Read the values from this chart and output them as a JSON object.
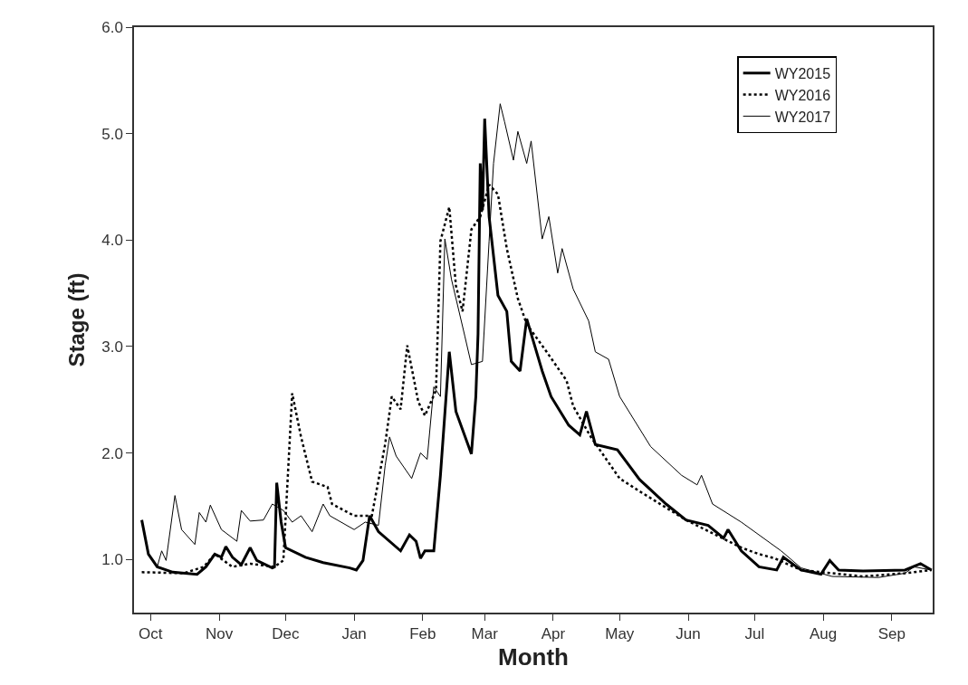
{
  "chart_data": {
    "type": "line",
    "xlabel": "Month",
    "ylabel": "Stage (ft)",
    "categories": [
      null,
      null,
      null,
      null,
      null,
      null,
      null,
      "Oct",
      null,
      null,
      null,
      null,
      null,
      null,
      null,
      null,
      null,
      null,
      null,
      null,
      null,
      null,
      null,
      null,
      null,
      null,
      null,
      null,
      null,
      null,
      null,
      null,
      null,
      null,
      null,
      null,
      null,
      null,
      "Nov",
      null,
      null,
      null,
      null,
      null,
      null,
      null,
      null,
      null,
      null,
      null,
      null,
      null,
      null,
      null,
      null,
      null,
      null,
      null,
      null,
      null,
      null,
      null,
      null,
      null,
      null,
      null,
      null,
      null,
      "Dec",
      null,
      null,
      null,
      null,
      null,
      null,
      null,
      null,
      null,
      null,
      null,
      null,
      null,
      null,
      null,
      null,
      null,
      null,
      null,
      null,
      null,
      null,
      null,
      null,
      null,
      null,
      null,
      null,
      null,
      null,
      "Jan",
      null,
      null,
      null,
      null,
      null,
      null,
      null,
      null,
      null,
      null,
      null,
      null,
      null,
      null,
      null,
      null,
      null,
      null,
      null,
      null,
      null,
      null,
      null,
      null,
      null,
      null,
      null,
      null,
      null,
      null,
      "Feb",
      null,
      null,
      null,
      null,
      null,
      null,
      null,
      null,
      null,
      null,
      null,
      null,
      null,
      null,
      null,
      null,
      null,
      null,
      null,
      null,
      null,
      null,
      null,
      null,
      null,
      null,
      null,
      "Mar",
      null,
      null,
      null,
      null,
      null,
      null,
      null,
      null,
      null,
      null,
      null,
      null,
      null,
      null,
      null,
      null,
      null,
      null,
      null,
      null,
      null,
      null,
      null,
      null,
      null,
      null,
      null,
      null,
      null,
      null,
      "Apr",
      null,
      null,
      null,
      null,
      null,
      null,
      null,
      null,
      null,
      null,
      null,
      null,
      null,
      null,
      null,
      null,
      null,
      null,
      null,
      null,
      null,
      null,
      null,
      null,
      null,
      null,
      null,
      null,
      null,
      "May",
      null,
      null,
      null,
      null,
      null,
      null,
      null,
      null,
      null,
      null,
      null,
      null,
      null,
      null,
      null,
      null,
      null,
      null,
      null,
      null,
      null,
      null,
      null,
      null,
      null,
      null,
      null,
      null,
      null,
      null,
      "Jun",
      null,
      null,
      null,
      null,
      null,
      null,
      null,
      null,
      null,
      null,
      null,
      null,
      null,
      null,
      null,
      null,
      null,
      null,
      null,
      null,
      null,
      null,
      null,
      null,
      null,
      null,
      null,
      null,
      null,
      "Jul",
      null,
      null,
      null,
      null,
      null,
      null,
      null,
      null,
      null,
      null,
      null,
      null,
      null,
      null,
      null,
      null,
      null,
      null,
      null,
      null,
      null,
      null,
      null,
      null,
      null,
      null,
      null,
      null,
      null,
      null,
      "Aug",
      null,
      null,
      null,
      null,
      null,
      null,
      null,
      null,
      null,
      null,
      null,
      null,
      null,
      null,
      null,
      null,
      null,
      null,
      null,
      null,
      null,
      null,
      null,
      null,
      null,
      null,
      null,
      null,
      null,
      null,
      "Sep",
      null,
      null,
      null,
      null,
      null,
      null,
      null,
      null,
      null,
      null,
      null,
      null,
      null,
      null,
      null,
      null,
      null,
      null
    ],
    "ylim": [
      0.5,
      6.0
    ],
    "yticks": [
      {
        "value": 1,
        "label": "1.0"
      },
      {
        "value": 2,
        "label": "2.0"
      },
      {
        "value": 3,
        "label": "3.0"
      },
      {
        "value": 4,
        "label": "4.0"
      },
      {
        "value": 5,
        "label": "5.0"
      },
      {
        "value": 6,
        "label": "6.0"
      }
    ],
    "legend": "top right",
    "marker": "none",
    "series": [
      {
        "name": "WY2015",
        "color": "#000000",
        "line_style": "solid",
        "values": [
          null,
          null,
          null,
          1.37,
          null,
          null,
          1.05,
          null,
          null,
          null,
          0.93,
          null,
          null,
          null,
          null,
          null,
          null,
          0.88,
          null,
          null,
          null,
          null,
          null,
          null,
          null,
          null,
          null,
          null,
          0.86,
          null,
          null,
          null,
          0.93,
          null,
          null,
          null,
          1.05,
          null,
          null,
          1.02,
          null,
          1.12,
          null,
          null,
          1.02,
          null,
          null,
          null,
          0.95,
          null,
          null,
          null,
          1.11,
          null,
          null,
          0.99,
          null,
          null,
          null,
          null,
          null,
          null,
          0.92,
          0.93,
          1.72,
          null,
          1.35,
          null,
          1.11,
          null,
          null,
          null,
          null,
          null,
          null,
          null,
          null,
          1.02,
          null,
          null,
          null,
          null,
          null,
          null,
          null,
          0.97,
          null,
          null,
          null,
          null,
          null,
          null,
          null,
          null,
          null,
          null,
          null,
          0.92,
          null,
          null,
          0.9,
          null,
          null,
          0.99,
          null,
          null,
          1.41,
          null,
          null,
          null,
          1.26,
          null,
          null,
          null,
          null,
          null,
          null,
          null,
          null,
          null,
          1.08,
          null,
          null,
          null,
          1.23,
          null,
          null,
          1.17,
          null,
          1.01,
          null,
          1.08,
          null,
          null,
          null,
          1.08,
          null,
          null,
          1.79,
          null,
          null,
          null,
          2.95,
          null,
          null,
          2.39,
          null,
          null,
          null,
          null,
          null,
          null,
          1.99,
          null,
          2.53,
          3.12,
          4.72,
          4.28,
          5.14,
          null,
          4.22,
          null,
          null,
          null,
          3.48,
          null,
          null,
          null,
          3.33,
          null,
          2.86,
          null,
          null,
          null,
          2.77,
          null,
          null,
          3.26,
          null,
          null,
          null,
          null,
          null,
          null,
          2.77,
          null,
          null,
          null,
          2.53,
          null,
          null,
          null,
          null,
          null,
          null,
          null,
          2.26,
          null,
          null,
          null,
          null,
          2.17,
          null,
          null,
          2.39,
          null,
          null,
          null,
          2.08,
          null,
          null,
          null,
          null,
          null,
          null,
          null,
          null,
          null,
          2.03,
          null,
          null,
          null,
          null,
          null,
          null,
          null,
          null,
          null,
          1.75,
          null,
          null,
          null,
          null,
          null,
          null,
          null,
          null,
          null,
          null,
          null,
          1.52,
          null,
          null,
          null,
          null,
          null,
          null,
          null,
          null,
          1.37,
          null,
          null,
          null,
          null,
          null,
          null,
          null,
          null,
          null,
          1.32,
          null,
          null,
          null,
          null,
          null,
          null,
          1.2,
          null,
          1.28,
          null,
          null,
          null,
          null,
          null,
          1.08,
          null,
          null,
          null,
          null,
          null,
          null,
          null,
          0.93,
          null,
          null,
          null,
          null,
          null,
          null,
          null,
          0.9,
          null,
          null,
          1.02,
          null,
          null,
          null,
          null,
          null,
          null,
          null,
          0.9,
          null,
          null,
          null,
          null,
          null,
          null,
          null,
          null,
          0.86,
          null,
          null,
          null,
          0.99,
          null,
          null,
          null,
          0.9,
          null,
          null,
          null,
          null,
          null,
          null,
          null,
          null,
          null,
          null,
          0.89,
          null,
          null,
          null,
          null,
          null,
          null,
          null,
          null,
          null,
          null,
          null,
          null,
          null,
          null,
          null,
          null,
          null,
          null,
          0.9,
          null,
          null,
          null,
          null,
          null,
          null,
          0.96,
          null,
          null,
          null,
          null,
          0.9
        ]
      },
      {
        "name": "WY2016",
        "color": "#000000",
        "line_style": "dotted",
        "values": [
          null,
          null,
          null,
          0.88,
          null,
          null,
          null,
          null,
          null,
          null,
          null,
          null,
          null,
          null,
          null,
          null,
          null,
          null,
          null,
          null,
          null,
          null,
          0.87,
          null,
          null,
          null,
          null,
          null,
          null,
          null,
          null,
          0.93,
          null,
          null,
          null,
          null,
          1.05,
          null,
          null,
          null,
          null,
          null,
          null,
          null,
          0.93,
          null,
          null,
          null,
          null,
          null,
          null,
          null,
          0.96,
          null,
          null,
          null,
          null,
          null,
          null,
          null,
          null,
          null,
          null,
          0.93,
          null,
          null,
          null,
          0.99,
          null,
          null,
          null,
          2.56,
          null,
          null,
          null,
          2.15,
          null,
          null,
          null,
          null,
          1.73,
          null,
          null,
          null,
          null,
          null,
          null,
          1.68,
          null,
          1.52,
          null,
          null,
          null,
          null,
          null,
          null,
          null,
          null,
          null,
          1.41,
          null,
          null,
          null,
          null,
          null,
          null,
          null,
          1.41,
          null,
          null,
          null,
          null,
          null,
          2.08,
          null,
          null,
          2.53,
          null,
          null,
          null,
          2.41,
          null,
          null,
          3.01,
          null,
          null,
          null,
          null,
          2.48,
          null,
          null,
          2.35,
          null,
          null,
          null,
          null,
          2.59,
          null,
          3.99,
          null,
          null,
          null,
          4.31,
          null,
          null,
          3.57,
          null,
          null,
          3.33,
          null,
          null,
          null,
          4.1,
          null,
          null,
          null,
          4.22,
          null,
          null,
          null,
          4.52,
          null,
          null,
          null,
          4.43,
          null,
          null,
          null,
          3.92,
          null,
          null,
          null,
          null,
          3.45,
          null,
          null,
          null,
          3.21,
          null,
          null,
          null,
          null,
          null,
          null,
          null,
          null,
          2.95,
          null,
          null,
          null,
          null,
          null,
          null,
          null,
          null,
          2.68,
          null,
          null,
          2.44,
          null,
          null,
          null,
          null,
          null,
          null,
          null,
          2.15,
          null,
          null,
          null,
          null,
          null,
          null,
          null,
          null,
          null,
          null,
          null,
          null,
          1.76,
          null,
          null,
          null,
          null,
          null,
          null,
          null,
          null,
          1.64,
          null,
          null,
          null,
          null,
          null,
          null,
          null,
          null,
          null,
          null,
          null,
          null,
          null,
          null,
          null,
          null,
          null,
          null,
          null,
          null,
          1.37,
          null,
          null,
          null,
          null,
          null,
          null,
          null,
          null,
          null,
          null,
          null,
          null,
          null,
          null,
          null,
          null,
          null,
          null,
          null,
          null,
          null,
          null,
          null,
          null,
          1.11,
          null,
          null,
          null,
          null,
          null,
          null,
          null,
          1.05,
          null,
          null,
          null,
          null,
          null,
          null,
          1.01,
          null,
          null,
          null,
          null,
          null,
          null,
          null,
          null,
          null,
          null,
          null,
          0.9,
          null,
          null,
          null,
          null,
          null,
          null,
          null,
          null,
          null,
          null,
          null,
          null,
          null,
          null,
          null,
          null,
          null,
          null,
          null,
          null,
          null,
          null,
          null,
          null,
          null,
          null,
          null,
          0.84,
          null,
          null,
          null,
          null,
          null,
          null,
          null,
          null,
          null,
          null,
          null,
          null,
          null,
          null,
          null,
          null,
          null,
          null,
          0.87,
          null,
          null,
          null,
          null,
          null,
          null,
          null,
          null,
          null,
          null,
          null,
          0.9
        ]
      },
      {
        "name": "WY2017",
        "color": "#000000",
        "line_style": "solid",
        "values": [
          null,
          null,
          null,
          null,
          null,
          null,
          null,
          null,
          null,
          null,
          0.93,
          null,
          1.08,
          null,
          0.99,
          null,
          null,
          null,
          1.6,
          null,
          null,
          1.28,
          null,
          null,
          null,
          null,
          null,
          1.14,
          null,
          1.44,
          null,
          null,
          1.35,
          null,
          1.51,
          null,
          null,
          null,
          null,
          1.28,
          null,
          null,
          null,
          null,
          null,
          null,
          1.17,
          null,
          1.46,
          null,
          null,
          null,
          1.36,
          null,
          null,
          null,
          null,
          null,
          1.37,
          null,
          null,
          null,
          1.52,
          null,
          null,
          null,
          null,
          1.46,
          null,
          null,
          null,
          1.35,
          null,
          null,
          null,
          1.41,
          null,
          null,
          null,
          null,
          1.26,
          null,
          null,
          null,
          null,
          1.52,
          null,
          null,
          1.41,
          null,
          null,
          null,
          null,
          null,
          null,
          null,
          null,
          null,
          null,
          1.28,
          null,
          null,
          null,
          null,
          1.35,
          null,
          null,
          null,
          null,
          null,
          1.32,
          null,
          null,
          1.88,
          null,
          2.15,
          null,
          null,
          1.97,
          null,
          null,
          null,
          null,
          null,
          null,
          1.76,
          null,
          null,
          null,
          2.0,
          null,
          null,
          1.94,
          null,
          null,
          2.62,
          null,
          null,
          2.53,
          null,
          4.01,
          null,
          null,
          3.63,
          null,
          null,
          null,
          null,
          null,
          3.1,
          null,
          null,
          2.83,
          null,
          null,
          null,
          null,
          2.86,
          null,
          null,
          3.99,
          null,
          4.72,
          null,
          null,
          5.28,
          null,
          5.11,
          null,
          null,
          null,
          4.75,
          null,
          5.02,
          null,
          null,
          null,
          4.72,
          null,
          4.93,
          null,
          null,
          null,
          null,
          4.01,
          null,
          null,
          4.22,
          null,
          null,
          null,
          3.69,
          null,
          3.92,
          null,
          null,
          null,
          null,
          3.54,
          null,
          null,
          null,
          null,
          null,
          null,
          3.24,
          null,
          null,
          2.95,
          null,
          null,
          null,
          null,
          null,
          2.88,
          null,
          null,
          null,
          null,
          2.53,
          null,
          null,
          null,
          null,
          null,
          null,
          null,
          null,
          null,
          null,
          null,
          null,
          null,
          2.06,
          null,
          null,
          null,
          null,
          null,
          null,
          null,
          null,
          null,
          null,
          null,
          null,
          null,
          1.79,
          null,
          null,
          null,
          null,
          null,
          null,
          1.7,
          null,
          1.79,
          null,
          null,
          null,
          null,
          1.52,
          null,
          null,
          null,
          null,
          null,
          null,
          null,
          null,
          null,
          null,
          null,
          null,
          1.35,
          null,
          null,
          null,
          null,
          null,
          null,
          null,
          null,
          null,
          null,
          null,
          null,
          null,
          null,
          null,
          null,
          null,
          1.08,
          null,
          null,
          null,
          null,
          null,
          null,
          null,
          null,
          0.92,
          null,
          null,
          null,
          null,
          null,
          null,
          null,
          null,
          null,
          null,
          null,
          null,
          null,
          0.84,
          null,
          null,
          null,
          null,
          null,
          null,
          null,
          null,
          null,
          null,
          null,
          null,
          null,
          null,
          null,
          null,
          null,
          null,
          null,
          null,
          0.83,
          null,
          null,
          null,
          null,
          null,
          null,
          null,
          null,
          null,
          null,
          null,
          0.87,
          null,
          null,
          null,
          0.93,
          null,
          null,
          null,
          null,
          null,
          null,
          null,
          0.9
        ]
      }
    ]
  }
}
